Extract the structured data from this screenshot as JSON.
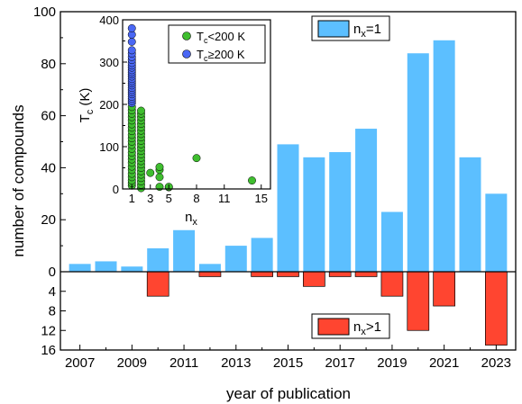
{
  "chart_data": [
    {
      "type": "bar",
      "xlabel": "year of publication",
      "ylabel": "number of compounds",
      "x_ticks": [
        "2007",
        "2009",
        "2011",
        "2013",
        "2015",
        "2017",
        "2019",
        "2021",
        "2023"
      ],
      "upper": {
        "ylim": [
          0,
          100
        ],
        "y_ticks": [
          "0",
          "20",
          "40",
          "60",
          "80",
          "100"
        ],
        "series": [
          {
            "name": "n_x=1",
            "color": "#5cbfff",
            "x": [
              2007,
              2008,
              2009,
              2010,
              2011,
              2012,
              2013,
              2014,
              2015,
              2016,
              2017,
              2018,
              2019,
              2020,
              2021,
              2022,
              2023
            ],
            "values": [
              3,
              4,
              2,
              9,
              16,
              3,
              10,
              13,
              49,
              44,
              46,
              55,
              23,
              84,
              89,
              44,
              30
            ]
          }
        ]
      },
      "lower": {
        "ylim": [
          16,
          0
        ],
        "y_ticks": [
          "4",
          "8",
          "12",
          "16"
        ],
        "series": [
          {
            "name": "n_x>1",
            "color": "#ff4530",
            "x": [
              2007,
              2008,
              2009,
              2010,
              2011,
              2012,
              2013,
              2014,
              2015,
              2016,
              2017,
              2018,
              2019,
              2020,
              2021,
              2022,
              2023
            ],
            "values": [
              0,
              0,
              0,
              5,
              0,
              1,
              0,
              1,
              1,
              3,
              1,
              1,
              5,
              12,
              7,
              0,
              15
            ]
          }
        ]
      },
      "legend_upper": {
        "label_main": "n",
        "label_sub": "x",
        "label_tail": "=1"
      },
      "legend_lower": {
        "label_main": "n",
        "label_sub": "x",
        "label_tail": ">1"
      }
    },
    {
      "type": "scatter",
      "xlabel_main": "n",
      "xlabel_sub": "x",
      "ylabel_main": "T",
      "ylabel_sub": "c",
      "ylabel_tail": " (K)",
      "xlim": [
        0,
        16
      ],
      "ylim": [
        0,
        400
      ],
      "x_ticks": [
        "1",
        "3",
        "5",
        "8",
        "11",
        "15"
      ],
      "y_ticks": [
        "0",
        "100",
        "200",
        "300",
        "400"
      ],
      "series": [
        {
          "name": "Tc<200 K",
          "legend_main": "T",
          "legend_sub": "c",
          "legend_tail": "<200 K",
          "color": "#3fbe2f",
          "points": [
            [
              1,
              8
            ],
            [
              1,
              14
            ],
            [
              1,
              20
            ],
            [
              1,
              28
            ],
            [
              1,
              36
            ],
            [
              1,
              45
            ],
            [
              1,
              53
            ],
            [
              1,
              62
            ],
            [
              1,
              70
            ],
            [
              1,
              78
            ],
            [
              1,
              86
            ],
            [
              1,
              95
            ],
            [
              1,
              104
            ],
            [
              1,
              112
            ],
            [
              1,
              120
            ],
            [
              1,
              128
            ],
            [
              1,
              137
            ],
            [
              1,
              145
            ],
            [
              1,
              153
            ],
            [
              1,
              162
            ],
            [
              1,
              170
            ],
            [
              1,
              178
            ],
            [
              1,
              186
            ],
            [
              1,
              194
            ],
            [
              2,
              2
            ],
            [
              2,
              10
            ],
            [
              2,
              18
            ],
            [
              2,
              26
            ],
            [
              2,
              34
            ],
            [
              2,
              42
            ],
            [
              2,
              50
            ],
            [
              2,
              58
            ],
            [
              2,
              66
            ],
            [
              2,
              74
            ],
            [
              2,
              82
            ],
            [
              2,
              90
            ],
            [
              2,
              98
            ],
            [
              2,
              106
            ],
            [
              2,
              114
            ],
            [
              2,
              122
            ],
            [
              2,
              130
            ],
            [
              2,
              138
            ],
            [
              2,
              146
            ],
            [
              2,
              154
            ],
            [
              2,
              162
            ],
            [
              2,
              170
            ],
            [
              2,
              178
            ],
            [
              2,
              185
            ],
            [
              3,
              38
            ],
            [
              4,
              5
            ],
            [
              4,
              28
            ],
            [
              4,
              45
            ],
            [
              4,
              52
            ],
            [
              5,
              4
            ],
            [
              5,
              5
            ],
            [
              8,
              73
            ],
            [
              14,
              20
            ]
          ]
        },
        {
          "name": "Tc≥200 K",
          "legend_main": "T",
          "legend_sub": "c",
          "legend_tail": "≥200 K",
          "color": "#4a67f4",
          "points": [
            [
              1,
              203
            ],
            [
              1,
              208
            ],
            [
              1,
              213
            ],
            [
              1,
              218
            ],
            [
              1,
              224
            ],
            [
              1,
              229
            ],
            [
              1,
              234
            ],
            [
              1,
              239
            ],
            [
              1,
              245
            ],
            [
              1,
              250
            ],
            [
              1,
              255
            ],
            [
              1,
              260
            ],
            [
              1,
              266
            ],
            [
              1,
              271
            ],
            [
              1,
              276
            ],
            [
              1,
              281
            ],
            [
              1,
              287
            ],
            [
              1,
              292
            ],
            [
              1,
              298
            ],
            [
              1,
              305
            ],
            [
              1,
              312
            ],
            [
              1,
              320
            ],
            [
              1,
              328
            ],
            [
              1,
              348
            ],
            [
              1,
              365
            ],
            [
              1,
              380
            ]
          ]
        }
      ]
    }
  ]
}
